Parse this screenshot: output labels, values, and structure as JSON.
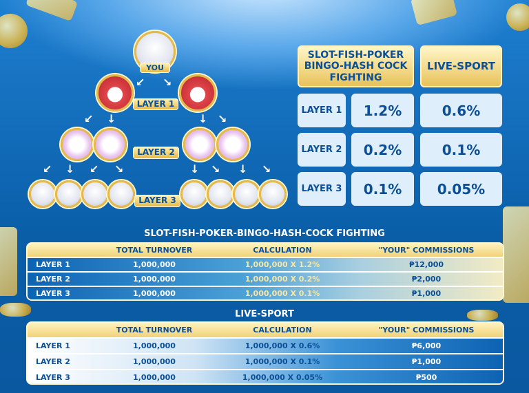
{
  "tree": {
    "you_label": "YOU",
    "layer1_label": "LAYER 1",
    "layer2_label": "LAYER 2",
    "layer3_label": "LAYER 3"
  },
  "rate_table": {
    "headers": [
      "SLOT-FISH-POKER BINGO-HASH COCK FIGHTING",
      "LIVE-SPORT"
    ],
    "rows": [
      {
        "label": "LAYER 1",
        "slot": "1.2%",
        "live": "0.6%"
      },
      {
        "label": "LAYER 2",
        "slot": "0.2%",
        "live": "0.1%"
      },
      {
        "label": "LAYER 3",
        "slot": "0.1%",
        "live": "0.05%"
      }
    ]
  },
  "table_slot": {
    "title": "SLOT-FISH-POKER-BINGO-HASH-COCK FIGHTING",
    "headers": [
      "",
      "TOTAL TURNOVER",
      "CALCULATION",
      "\"YOUR\" COMMISSIONS"
    ],
    "rows": [
      [
        "LAYER 1",
        "1,000,000",
        "1,000,000 X 1.2%",
        "₱12,000"
      ],
      [
        "LAYER 2",
        "1,000,000",
        "1,000,000 X 0.2%",
        "₱2,000"
      ],
      [
        "LAYER 3",
        "1,000,000",
        "1,000,000 X 0.1%",
        "₱1,000"
      ]
    ]
  },
  "table_live": {
    "title": "LIVE-SPORT",
    "headers": [
      "",
      "TOTAL TURNOVER",
      "CALCULATION",
      "\"YOUR\" COMMISSIONS"
    ],
    "rows": [
      [
        "LAYER 1",
        "1,000,000",
        "1,000,000 X 0.6%",
        "₱6,000"
      ],
      [
        "LAYER 2",
        "1,000,000",
        "1,000,000 X 0.1%",
        "₱1,000"
      ],
      [
        "LAYER 3",
        "1,000,000",
        "1,000,000 X 0.05%",
        "₱500"
      ]
    ]
  }
}
